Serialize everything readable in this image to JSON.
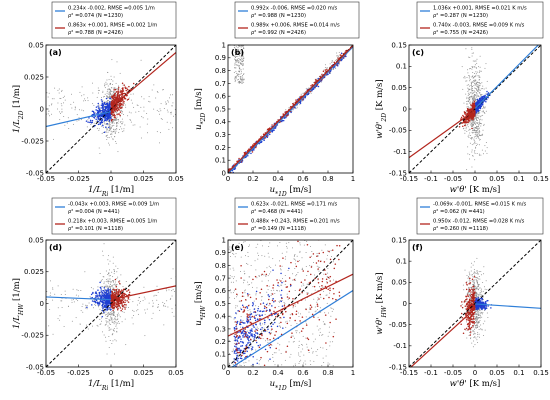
{
  "colors": {
    "scatter_gray": "#8c8c8c",
    "series_blue": "#1f3fd1",
    "series_red": "#b3261e",
    "line_blue": "#2f7fd8",
    "line_red": "#b3261e",
    "identity": "#000000",
    "axis": "#000000"
  },
  "chart_data": [
    {
      "panel": "(a)",
      "type": "scatter",
      "xlabel": "1/L_Ri [1/m]",
      "ylabel": "1/L_2D [1/m]",
      "xlabel_main": "1/L",
      "xlabel_sub": "Ri",
      "xlabel_unit": " [1/m]",
      "ylabel_main": "1/L",
      "ylabel_sub": "2D",
      "ylabel_unit": " [1/m]",
      "xlim": [
        -0.05,
        0.05
      ],
      "ylim": [
        -0.05,
        0.05
      ],
      "xticks": [
        "-0.05",
        "-0.025",
        "0",
        "0.025",
        "0.05"
      ],
      "yticks": [
        "-0.05",
        "-0.025",
        "0",
        "0.025",
        "0.05"
      ],
      "xtick_values": [
        -0.05,
        -0.025,
        0,
        0.025,
        0.05
      ],
      "ytick_values": [
        -0.05,
        -0.025,
        0,
        0.025,
        0.05
      ],
      "legend": {
        "blue_line1": "0.234x -0.002, RMSE =0.005 1/m",
        "blue_line2": "ρ² =0.074 (N =1230)",
        "red_line1": "0.863x +0.001, RMSE =0.002 1/m",
        "red_line2": "ρ² =0.788 (N =2426)"
      },
      "series": [
        {
          "color": "blue",
          "slope": 0.234,
          "intercept": -0.002,
          "x_range": [
            -0.05,
            0.0
          ]
        },
        {
          "color": "red",
          "slope": 0.863,
          "intercept": 0.001,
          "x_range": [
            0.0,
            0.05
          ]
        }
      ]
    },
    {
      "panel": "(b)",
      "type": "scatter",
      "xlabel": "u_*1D [m/s]",
      "ylabel": "u_*2D [m/s]",
      "xlabel_main": "u",
      "xlabel_sub": "*1D",
      "xlabel_unit": " [m/s]",
      "ylabel_main": "u",
      "ylabel_sub": "*2D",
      "ylabel_unit": " [m/s]",
      "xlim": [
        0,
        1
      ],
      "ylim": [
        0,
        1
      ],
      "xticks": [
        "0",
        "0.2",
        "0.4",
        "0.6",
        "0.8",
        "1"
      ],
      "yticks": [
        "0",
        "0.1",
        "0.2",
        "0.3",
        "0.4",
        "0.5",
        "0.6",
        "0.7",
        "0.8",
        "0.9",
        "1"
      ],
      "xtick_values": [
        0,
        0.2,
        0.4,
        0.6,
        0.8,
        1
      ],
      "ytick_values": [
        0,
        0.1,
        0.2,
        0.3,
        0.4,
        0.5,
        0.6,
        0.7,
        0.8,
        0.9,
        1
      ],
      "legend": {
        "blue_line1": "0.992x -0.006, RMSE =0.020 m/s",
        "blue_line2": "ρ² =0.988 (N =1230)",
        "red_line1": "0.989x +0.006, RMSE =0.014 m/s",
        "red_line2": "ρ² =0.992 (N =2426)"
      },
      "series": [
        {
          "color": "blue",
          "slope": 0.992,
          "intercept": -0.006,
          "x_range": [
            0,
            1
          ]
        },
        {
          "color": "red",
          "slope": 0.989,
          "intercept": 0.006,
          "x_range": [
            0,
            1
          ]
        }
      ]
    },
    {
      "panel": "(c)",
      "type": "scatter",
      "xlabel": "w'θ' [K m/s]",
      "ylabel": "w'θ'_2D [K m/s]",
      "xlabel_main": "w'θ'",
      "xlabel_sub": "",
      "xlabel_unit": " [K m/s]",
      "ylabel_main": "w'θ'",
      "ylabel_sub": "2D",
      "ylabel_unit": " [K m/s]",
      "xlim": [
        -0.15,
        0.15
      ],
      "ylim": [
        -0.15,
        0.15
      ],
      "xticks": [
        "-0.15",
        "-0.1",
        "-0.05",
        "0",
        "0.05",
        "0.1",
        "0.15"
      ],
      "yticks": [
        "-0.15",
        "-0.1",
        "-0.05",
        "0",
        "0.05",
        "0.1",
        "0.15"
      ],
      "xtick_values": [
        -0.15,
        -0.1,
        -0.05,
        0,
        0.05,
        0.1,
        0.15
      ],
      "ytick_values": [
        -0.15,
        -0.1,
        -0.05,
        0,
        0.05,
        0.1,
        0.15
      ],
      "legend": {
        "blue_line1": "1.036x +0.001, RMSE =0.021 K m/s",
        "blue_line2": "ρ² =0.287 (N =1230)",
        "red_line1": "0.740x -0.003, RMSE =0.009 K m/s",
        "red_line2": "ρ² =0.755 (N =2426)"
      },
      "series": [
        {
          "color": "blue",
          "slope": 1.036,
          "intercept": 0.001,
          "x_range": [
            0.0,
            0.15
          ]
        },
        {
          "color": "red",
          "slope": 0.74,
          "intercept": -0.003,
          "x_range": [
            -0.15,
            0.0
          ]
        }
      ]
    },
    {
      "panel": "(d)",
      "type": "scatter",
      "xlabel": "1/L_Ri [1/m]",
      "ylabel": "1/L_HW [1/m]",
      "xlabel_main": "1/L",
      "xlabel_sub": "Ri",
      "xlabel_unit": " [1/m]",
      "ylabel_main": "1/L",
      "ylabel_sub": "HW",
      "ylabel_unit": " [1/m]",
      "xlim": [
        -0.05,
        0.05
      ],
      "ylim": [
        -0.05,
        0.05
      ],
      "xticks": [
        "-0.05",
        "-0.025",
        "0",
        "0.025",
        "0.05"
      ],
      "yticks": [
        "-0.05",
        "-0.025",
        "0",
        "0.025",
        "0.05"
      ],
      "xtick_values": [
        -0.05,
        -0.025,
        0,
        0.025,
        0.05
      ],
      "ytick_values": [
        -0.05,
        -0.025,
        0,
        0.025,
        0.05
      ],
      "legend": {
        "blue_line1": "-0.043x +0.003, RMSE =0.009 1/m",
        "blue_line2": "ρ² =0.004 (N =441)",
        "red_line1": "0.218x +0.003, RMSE =0.005 1/m",
        "red_line2": "ρ² =0.101 (N =1118)"
      },
      "series": [
        {
          "color": "blue",
          "slope": -0.043,
          "intercept": 0.003,
          "x_range": [
            -0.05,
            0.0
          ]
        },
        {
          "color": "red",
          "slope": 0.218,
          "intercept": 0.003,
          "x_range": [
            0.0,
            0.05
          ]
        }
      ]
    },
    {
      "panel": "(e)",
      "type": "scatter",
      "xlabel": "u_*1D [m/s]",
      "ylabel": "u_*HW [m/s]",
      "xlabel_main": "u",
      "xlabel_sub": "*1D",
      "xlabel_unit": " [m/s]",
      "ylabel_main": "u",
      "ylabel_sub": "*HW",
      "ylabel_unit": " [m/s]",
      "xlim": [
        0,
        1
      ],
      "ylim": [
        0,
        1
      ],
      "xticks": [
        "0",
        "0.2",
        "0.4",
        "0.6",
        "0.8",
        "1"
      ],
      "yticks": [
        "0",
        "0.1",
        "0.2",
        "0.3",
        "0.4",
        "0.5",
        "0.6",
        "0.7",
        "0.8",
        "0.9",
        "1"
      ],
      "xtick_values": [
        0,
        0.2,
        0.4,
        0.6,
        0.8,
        1
      ],
      "ytick_values": [
        0,
        0.1,
        0.2,
        0.3,
        0.4,
        0.5,
        0.6,
        0.7,
        0.8,
        0.9,
        1
      ],
      "legend": {
        "blue_line1": "0.623x -0.021, RMSE =0.171 m/s",
        "blue_line2": "ρ² =0.468 (N =441)",
        "red_line1": "0.488x +0.243, RMSE =0.201 m/s",
        "red_line2": "ρ² =0.149 (N =1118)"
      },
      "series": [
        {
          "color": "blue",
          "slope": 0.623,
          "intercept": -0.021,
          "x_range": [
            0,
            1
          ]
        },
        {
          "color": "red",
          "slope": 0.488,
          "intercept": 0.243,
          "x_range": [
            0,
            1
          ]
        }
      ]
    },
    {
      "panel": "(f)",
      "type": "scatter",
      "xlabel": "w'θ' [K m/s]",
      "ylabel": "w'θ'_HW [K m/s]",
      "xlabel_main": "w'θ'",
      "xlabel_sub": "",
      "xlabel_unit": " [K m/s]",
      "ylabel_main": "w'θ'",
      "ylabel_sub": "HW",
      "ylabel_unit": " [K m/s]",
      "xlim": [
        -0.15,
        0.15
      ],
      "ylim": [
        -0.15,
        0.15
      ],
      "xticks": [
        "-0.15",
        "-0.1",
        "-0.05",
        "0",
        "0.05",
        "0.1",
        "0.15"
      ],
      "yticks": [
        "-0.15",
        "-0.1",
        "-0.05",
        "0",
        "0.05",
        "0.1",
        "0.15"
      ],
      "xtick_values": [
        -0.15,
        -0.1,
        -0.05,
        0,
        0.05,
        0.1,
        0.15
      ],
      "ytick_values": [
        -0.15,
        -0.1,
        -0.05,
        0,
        0.05,
        0.1,
        0.15
      ],
      "legend": {
        "blue_line1": "-0.069x -0.001, RMSE =0.015 K m/s",
        "blue_line2": "ρ² =0.062 (N =441)",
        "red_line1": "0.950x -0.012, RMSE =0.028 K m/s",
        "red_line2": "ρ² =0.260 (N =1118)"
      },
      "series": [
        {
          "color": "blue",
          "slope": -0.069,
          "intercept": -0.001,
          "x_range": [
            0.0,
            0.15
          ]
        },
        {
          "color": "red",
          "slope": 0.95,
          "intercept": -0.012,
          "x_range": [
            -0.15,
            0.0
          ]
        }
      ]
    }
  ]
}
